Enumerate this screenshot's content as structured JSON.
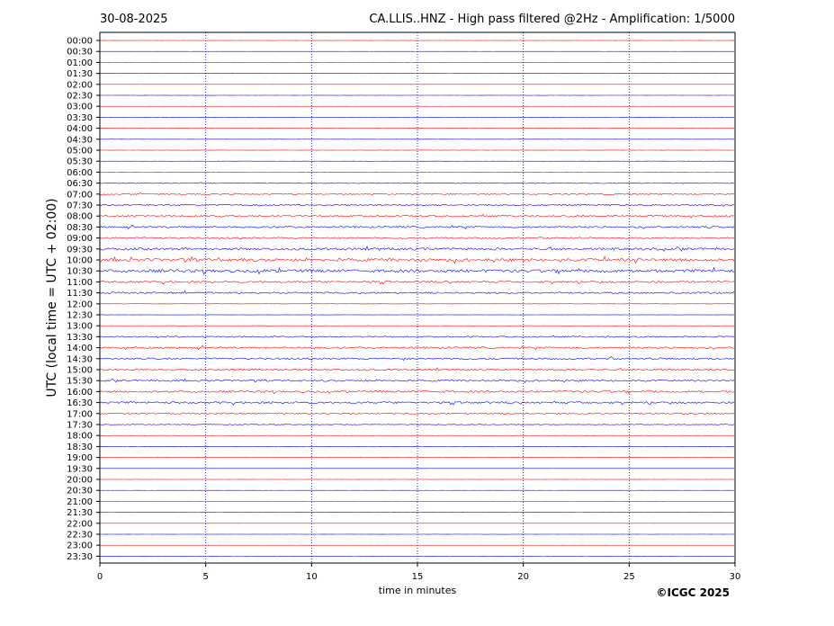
{
  "header": {
    "date": "30-08-2025",
    "title": "CA.LLIS..HNZ - High pass filtered @2Hz - Amplification: 1/5000"
  },
  "footer": {
    "copyright": "©ICGC 2025"
  },
  "colors": {
    "red_trace": "#ff0000",
    "blue_trace": "#0000ff",
    "grid": "#0000aa",
    "axis": "#000000"
  },
  "chart_data": {
    "type": "line",
    "title": "CA.LLIS..HNZ - High pass filtered @2Hz - Amplification: 1/5000",
    "xlabel": "time in minutes",
    "ylabel": "UTC (local time = UTC + 02:00)",
    "xlim": [
      0,
      30
    ],
    "x_ticks": [
      0,
      5,
      10,
      15,
      20,
      25,
      30
    ],
    "x_gridlines": [
      5,
      10,
      15,
      20,
      25
    ],
    "grid": "vertical dotted",
    "legend": "none",
    "trace_colors_alternate": [
      "blue",
      "red"
    ],
    "rows": [
      {
        "label": "00:00",
        "activity": 0.02
      },
      {
        "label": "00:30",
        "activity": 0.02
      },
      {
        "label": "01:00",
        "activity": 0.02
      },
      {
        "label": "01:30",
        "activity": 0.03
      },
      {
        "label": "02:00",
        "activity": 0.02
      },
      {
        "label": "02:30",
        "activity": 0.02
      },
      {
        "label": "03:00",
        "activity": 0.03
      },
      {
        "label": "03:30",
        "activity": 0.05
      },
      {
        "label": "04:00",
        "activity": 0.06
      },
      {
        "label": "04:30",
        "activity": 0.04
      },
      {
        "label": "05:00",
        "activity": 0.05
      },
      {
        "label": "05:30",
        "activity": 0.05
      },
      {
        "label": "06:00",
        "activity": 0.05
      },
      {
        "label": "06:30",
        "activity": 0.2
      },
      {
        "label": "07:00",
        "activity": 0.35
      },
      {
        "label": "07:30",
        "activity": 0.4
      },
      {
        "label": "08:00",
        "activity": 0.45
      },
      {
        "label": "08:30",
        "activity": 0.45
      },
      {
        "label": "09:00",
        "activity": 0.4
      },
      {
        "label": "09:30",
        "activity": 0.6
      },
      {
        "label": "10:00",
        "activity": 0.75
      },
      {
        "label": "10:30",
        "activity": 0.75
      },
      {
        "label": "11:00",
        "activity": 0.5
      },
      {
        "label": "11:30",
        "activity": 0.45
      },
      {
        "label": "12:00",
        "activity": 0.06
      },
      {
        "label": "12:30",
        "activity": 0.05
      },
      {
        "label": "13:00",
        "activity": 0.05
      },
      {
        "label": "13:30",
        "activity": 0.35
      },
      {
        "label": "14:00",
        "activity": 0.45
      },
      {
        "label": "14:30",
        "activity": 0.45
      },
      {
        "label": "15:00",
        "activity": 0.45
      },
      {
        "label": "15:30",
        "activity": 0.45
      },
      {
        "label": "16:00",
        "activity": 0.5
      },
      {
        "label": "16:30",
        "activity": 0.5
      },
      {
        "label": "17:00",
        "activity": 0.4
      },
      {
        "label": "17:30",
        "activity": 0.15
      },
      {
        "label": "18:00",
        "activity": 0.04
      },
      {
        "label": "18:30",
        "activity": 0.03
      },
      {
        "label": "19:00",
        "activity": 0.03
      },
      {
        "label": "19:30",
        "activity": 0.02
      },
      {
        "label": "20:00",
        "activity": 0.02
      },
      {
        "label": "20:30",
        "activity": 0.03
      },
      {
        "label": "21:00",
        "activity": 0.02
      },
      {
        "label": "21:30",
        "activity": 0.02
      },
      {
        "label": "22:00",
        "activity": 0.02
      },
      {
        "label": "22:30",
        "activity": 0.02
      },
      {
        "label": "23:00",
        "activity": 0.03
      },
      {
        "label": "23:30",
        "activity": 0.02
      }
    ]
  }
}
